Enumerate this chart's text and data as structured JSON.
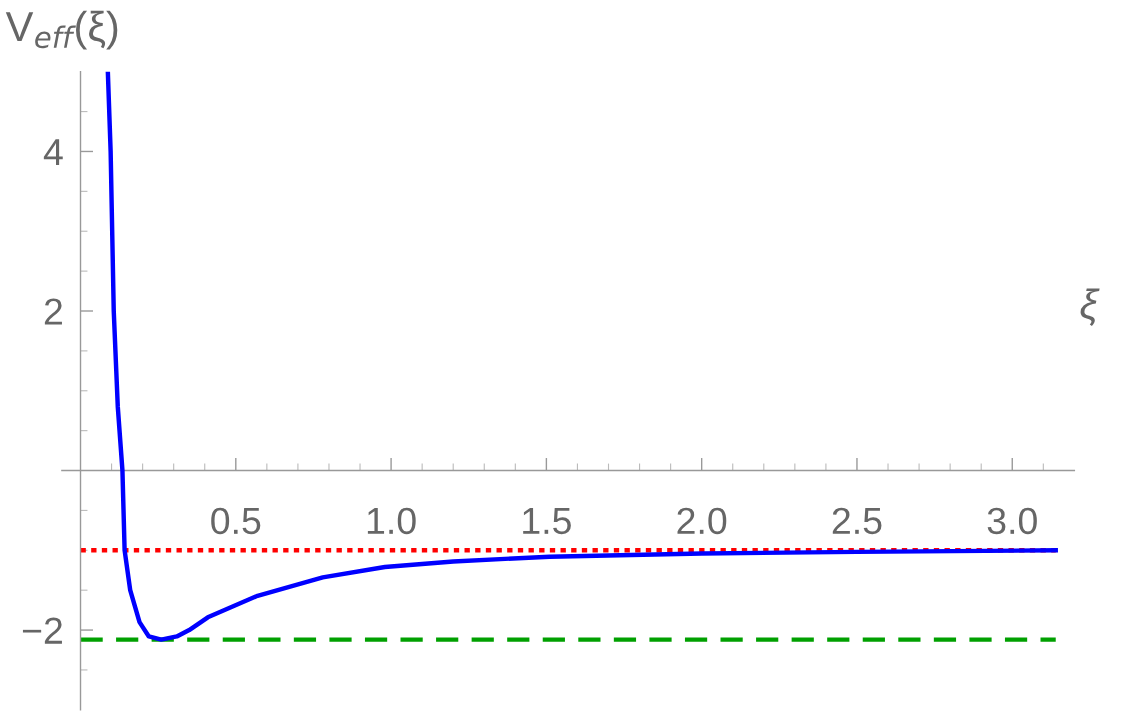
{
  "chart_data": {
    "type": "line",
    "xlabel": "ξ",
    "ylabel": "V$_{eff}$(ξ)",
    "x": [
      0.088,
      0.097,
      0.107,
      0.12,
      0.135,
      0.142,
      0.16,
      0.19,
      0.22,
      0.26,
      0.31,
      0.35,
      0.41,
      0.57,
      0.78,
      0.98,
      1.2,
      1.51,
      2.0,
      2.5,
      3.14
    ],
    "series": [
      {
        "color": "#0000ff",
        "values": [
          5.0,
          4.0,
          2.0,
          0.8,
          0.0,
          -1.0,
          -1.5,
          -1.9,
          -2.08,
          -2.12,
          -2.08,
          -2.0,
          -1.84,
          -1.57,
          -1.34,
          -1.21,
          -1.14,
          -1.08,
          -1.04,
          -1.02,
          -1.0
        ]
      }
    ],
    "ref_lines": [
      {
        "axis": "y",
        "value": -1.0,
        "color": "#ff0000",
        "line_style": "dotted"
      },
      {
        "axis": "y",
        "value": -2.12,
        "color": "#00a000",
        "line_style": "dashed"
      }
    ],
    "xlim": [
      -0.06,
      3.2
    ],
    "ylim": [
      -3,
      5
    ],
    "xticks": [
      {
        "value": 0.1,
        "label": null
      },
      {
        "value": 0.2,
        "label": null
      },
      {
        "value": 0.3,
        "label": null
      },
      {
        "value": 0.4,
        "label": null
      },
      0.5,
      {
        "value": 0.6,
        "label": null
      },
      {
        "value": 0.7,
        "label": null
      },
      {
        "value": 0.8,
        "label": null
      },
      {
        "value": 0.9,
        "label": null
      },
      {
        "value": 1.0,
        "label": "1.0"
      },
      {
        "value": 1.1,
        "label": null
      },
      {
        "value": 1.2,
        "label": null
      },
      {
        "value": 1.3,
        "label": null
      },
      {
        "value": 1.4,
        "label": null
      },
      1.5,
      {
        "value": 1.6,
        "label": null
      },
      {
        "value": 1.7,
        "label": null
      },
      {
        "value": 1.8,
        "label": null
      },
      {
        "value": 1.9,
        "label": null
      },
      {
        "value": 2.0,
        "label": "2.0"
      },
      {
        "value": 2.1,
        "label": null
      },
      {
        "value": 2.2,
        "label": null
      },
      {
        "value": 2.3,
        "label": null
      },
      {
        "value": 2.4,
        "label": null
      },
      2.5,
      {
        "value": 2.6,
        "label": null
      },
      {
        "value": 2.7,
        "label": null
      },
      {
        "value": 2.8,
        "label": null
      },
      {
        "value": 2.9,
        "label": null
      },
      {
        "value": 3.0,
        "label": "3.0"
      },
      {
        "value": 3.1,
        "label": null
      }
    ],
    "yticks": [
      {
        "value": -2.5,
        "label": null
      },
      {
        "value": -2,
        "label": "−2"
      },
      {
        "value": -1.5,
        "label": null
      },
      {
        "value": -1,
        "label": null
      },
      {
        "value": -0.5,
        "label": null
      },
      {
        "value": 0.5,
        "label": null
      },
      {
        "value": 1,
        "label": null
      },
      {
        "value": 1.5,
        "label": null
      },
      2,
      {
        "value": 2.5,
        "label": null
      },
      {
        "value": 3,
        "label": null
      },
      {
        "value": 3.5,
        "label": null
      },
      4,
      {
        "value": 4.5,
        "label": null
      }
    ],
    "grid": false,
    "legend": false,
    "marker": "none",
    "line_style": "solid"
  }
}
